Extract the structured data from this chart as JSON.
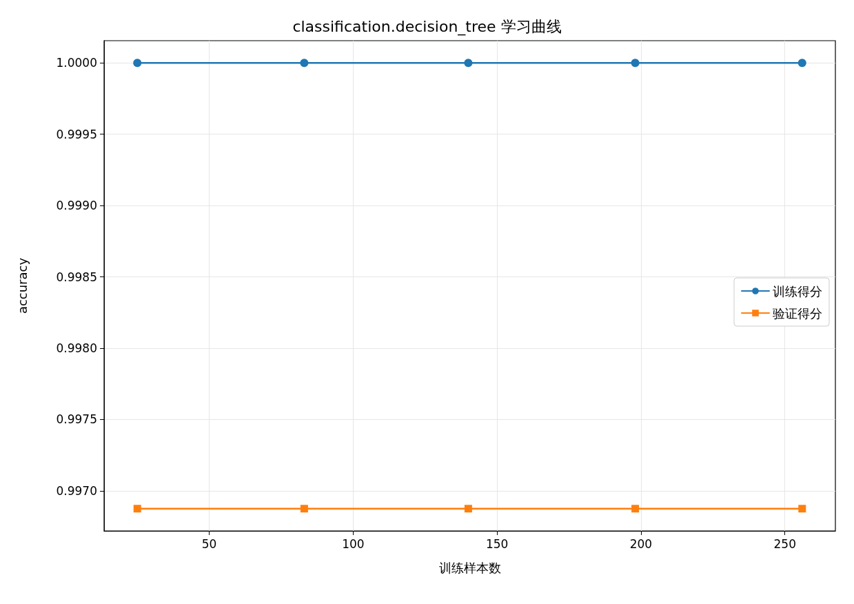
{
  "chart_data": {
    "type": "line",
    "title": "classification.decision_tree 学习曲线",
    "xlabel": "训练样本数",
    "ylabel": "accuracy",
    "x": [
      25,
      83,
      140,
      198,
      256
    ],
    "series": [
      {
        "name": "训练得分",
        "color": "#1f77b4",
        "marker": "circle",
        "values": [
          1.0,
          1.0,
          1.0,
          1.0,
          1.0
        ]
      },
      {
        "name": "验证得分",
        "color": "#ff7f0e",
        "marker": "square",
        "values": [
          0.996875,
          0.996875,
          0.996875,
          0.996875,
          0.996875
        ]
      }
    ],
    "xlim": [
      13.45,
      267.55
    ],
    "xticks": [
      50,
      100,
      150,
      200,
      250
    ],
    "ylim": [
      0.996719,
      1.000156
    ],
    "yticks": [
      {
        "value": 0.997,
        "label": "0.9970"
      },
      {
        "value": 0.9975,
        "label": "0.9975"
      },
      {
        "value": 0.998,
        "label": "0.9980"
      },
      {
        "value": 0.9985,
        "label": "0.9985"
      },
      {
        "value": 0.999,
        "label": "0.9990"
      },
      {
        "value": 0.9995,
        "label": "0.9995"
      },
      {
        "value": 1.0,
        "label": "1.0000"
      }
    ],
    "grid": true,
    "legend": "right",
    "line_style": "solid"
  }
}
